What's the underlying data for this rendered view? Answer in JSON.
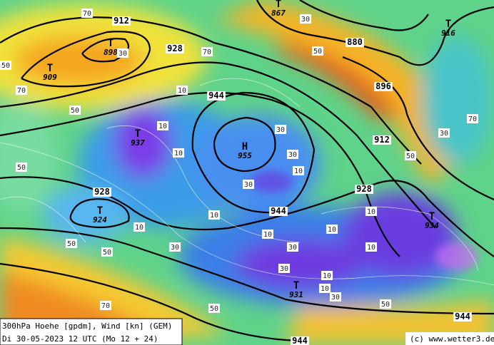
{
  "caption": [
    "300hPa Hoehe [gpdm], Wind [kn] (GEM)",
    "Di 30-05-2023 12 UTC (Mo 12 + 24)"
  ],
  "credit": "(c) www.wetter3.de",
  "centers": [
    {
      "symbol": "T",
      "value": 898
    },
    {
      "symbol": "T",
      "value": 909
    },
    {
      "symbol": "T",
      "value": 867
    },
    {
      "symbol": "T",
      "value": 916
    },
    {
      "symbol": "H",
      "value": 955
    },
    {
      "symbol": "T",
      "value": 937
    },
    {
      "symbol": "T",
      "value": 924
    },
    {
      "symbol": "T",
      "value": 934
    },
    {
      "symbol": "T",
      "value": 931
    }
  ],
  "contour_labels": [
    912,
    928,
    880,
    896,
    912,
    944,
    928,
    928,
    944,
    944,
    944
  ],
  "wind_labels": [
    70,
    50,
    70,
    30,
    50,
    70,
    10,
    30,
    50,
    10,
    30,
    10,
    30,
    10,
    50,
    30,
    10,
    10,
    30,
    50,
    10,
    30,
    10,
    10,
    50,
    30,
    10,
    10,
    50,
    70,
    50,
    30,
    10,
    50,
    30,
    70
  ]
}
